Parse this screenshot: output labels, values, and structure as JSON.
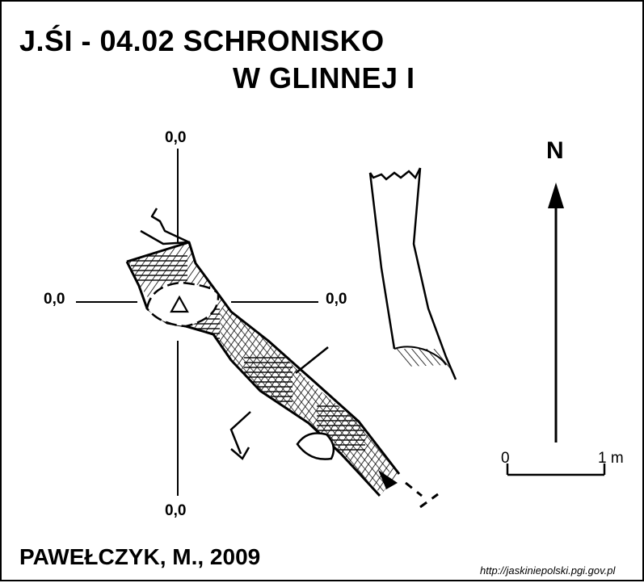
{
  "title": {
    "line1": "J.ŚI - 04.02  SCHRONISKO",
    "line2": "W GLINNEJ I"
  },
  "coordinates": {
    "top": "0,0",
    "left": "0,0",
    "right": "0,0",
    "bottom": "0,0"
  },
  "north_label": "N",
  "scale": {
    "start": "0",
    "end": "1 m"
  },
  "author": "PAWEŁCZYK, M., 2009",
  "source_url": "http://jaskiniepolski.pgi.gov.pl",
  "colors": {
    "ink": "#000000",
    "paper": "#ffffff"
  }
}
